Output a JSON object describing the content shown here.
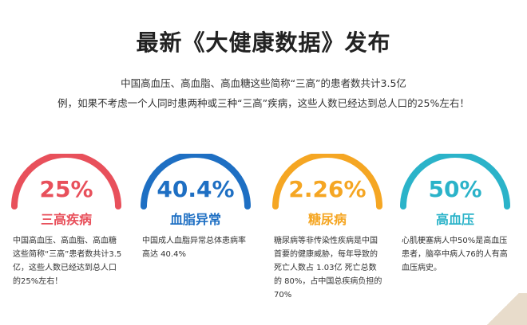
{
  "header": {
    "title": "最新《大健康数据》发布",
    "intro_line1": "中国高血压、高血脂、高血糖这些简称“三高”的患者数共计3.5亿",
    "intro_line2": "例，如果不考虑一个人同时患两种或三种“三高”疾病，这些人数已经达到总人口的25%左右！"
  },
  "stats": [
    {
      "percent": "25%",
      "label": "三高疾病",
      "color": "#e8505b",
      "description": "中国高血压、高血脂、高血糖这些简称“三高”患者数共计3.5亿，这些人数已经达到总人口的25%左右！"
    },
    {
      "percent": "40.4%",
      "label": "血脂异常",
      "color": "#1e6fc3",
      "description": "中国成人血脂异常总体患病率高达 40.4%"
    },
    {
      "percent": "2.26%",
      "label": "糖尿病",
      "color": "#f5a623",
      "description": "糖尿病等非传染性疾病是中国首要的健康威胁，每年导致的死亡人数占 1.03亿 死亡总数的 80%，占中国总疾病负担的 70%"
    },
    {
      "percent": "50%",
      "label": "高血压",
      "color": "#2bb3c9",
      "description": "心肌梗塞病人中50%是高血压患者，脑卒中病人76的人有高血压病史。"
    }
  ]
}
